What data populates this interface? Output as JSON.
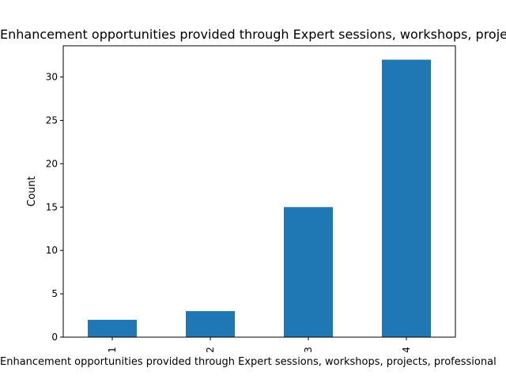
{
  "chart_data": {
    "type": "bar",
    "title": "Enhancement opportunities provided through Expert sessions, workshops, projects",
    "xlabel": "Enhancement opportunities provided through Expert sessions, workshops, projects, professional",
    "ylabel": "Count",
    "categories": [
      "1",
      "2",
      "3",
      "4"
    ],
    "values": [
      2,
      3,
      15,
      32
    ],
    "ylim": [
      0,
      33.6
    ],
    "yticks": [
      0,
      5,
      10,
      15,
      20,
      25,
      30
    ],
    "grid": false,
    "bar_color": "#1f77b4"
  }
}
